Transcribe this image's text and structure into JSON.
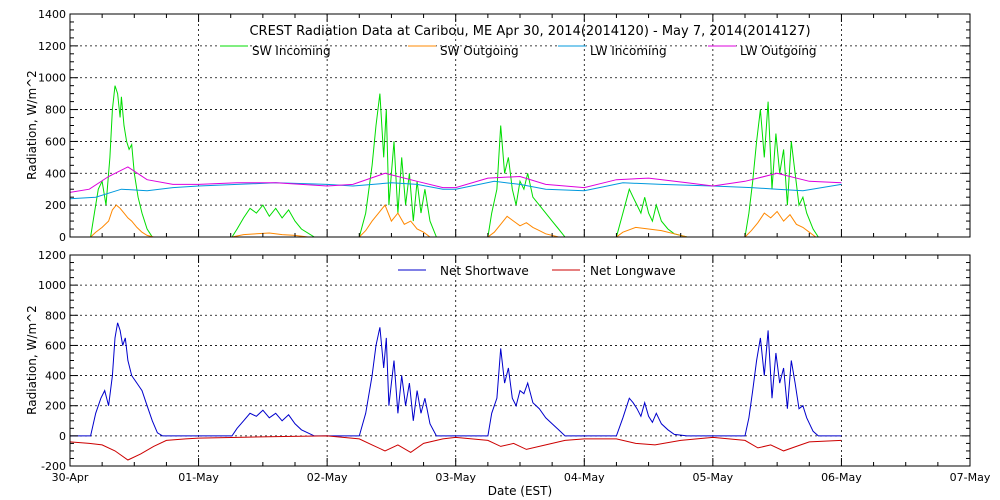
{
  "chart_data": [
    {
      "type": "line",
      "title": "CREST Radiation Data at Caribou, ME   Apr 30, 2014(2014120) - May  7, 2014(2014127)",
      "ylabel": "Radiation, W/m^2",
      "ylim": [
        0,
        1400
      ],
      "yticks": [
        "0",
        "200",
        "400",
        "600",
        "800",
        "1000",
        "1200",
        "1400"
      ],
      "xlim": [
        0,
        7
      ],
      "grid": true,
      "legend_position": "top-center",
      "series": [
        {
          "name": "SW Incoming",
          "color": "#00dd00",
          "x": [
            0.0,
            0.16,
            0.19,
            0.22,
            0.25,
            0.28,
            0.31,
            0.33,
            0.35,
            0.37,
            0.39,
            0.4,
            0.42,
            0.44,
            0.46,
            0.48,
            0.5,
            0.53,
            0.56,
            0.6,
            0.64,
            0.68,
            0.72,
            0.75,
            1.0,
            1.26,
            1.3,
            1.35,
            1.4,
            1.45,
            1.5,
            1.55,
            1.6,
            1.65,
            1.7,
            1.75,
            1.8,
            1.9,
            2.0,
            2.25,
            2.3,
            2.35,
            2.38,
            2.41,
            2.44,
            2.46,
            2.48,
            2.5,
            2.52,
            2.55,
            2.58,
            2.61,
            2.64,
            2.67,
            2.7,
            2.73,
            2.76,
            2.8,
            2.85,
            3.0,
            3.25,
            3.28,
            3.32,
            3.35,
            3.38,
            3.41,
            3.44,
            3.47,
            3.5,
            3.53,
            3.56,
            3.6,
            3.65,
            3.7,
            3.75,
            3.8,
            3.85,
            4.0,
            4.25,
            4.3,
            4.35,
            4.38,
            4.41,
            4.44,
            4.47,
            4.5,
            4.53,
            4.56,
            4.6,
            4.65,
            4.7,
            4.8,
            5.0,
            5.25,
            5.28,
            5.31,
            5.34,
            5.37,
            5.4,
            5.43,
            5.46,
            5.49,
            5.52,
            5.55,
            5.58,
            5.61,
            5.64,
            5.67,
            5.7,
            5.73,
            5.78,
            5.82,
            6.0
          ],
          "values": [
            0,
            0,
            150,
            300,
            350,
            200,
            500,
            800,
            950,
            900,
            750,
            880,
            700,
            600,
            550,
            580,
            400,
            250,
            150,
            50,
            0,
            0,
            0,
            0,
            0,
            0,
            50,
            120,
            180,
            150,
            200,
            130,
            180,
            120,
            170,
            100,
            50,
            0,
            0,
            0,
            150,
            450,
            700,
            900,
            500,
            800,
            200,
            400,
            600,
            150,
            500,
            200,
            400,
            100,
            350,
            150,
            300,
            100,
            0,
            0,
            0,
            150,
            300,
            700,
            400,
            500,
            300,
            200,
            350,
            300,
            400,
            250,
            200,
            150,
            100,
            50,
            0,
            0,
            0,
            150,
            300,
            250,
            200,
            150,
            250,
            150,
            100,
            200,
            100,
            50,
            20,
            0,
            0,
            0,
            150,
            350,
            600,
            800,
            500,
            850,
            300,
            650,
            400,
            550,
            200,
            600,
            400,
            200,
            250,
            150,
            50,
            0,
            0
          ]
        },
        {
          "name": "SW Outgoing",
          "color": "#ff8800",
          "x": [
            0.0,
            0.16,
            0.2,
            0.25,
            0.3,
            0.33,
            0.36,
            0.39,
            0.42,
            0.45,
            0.48,
            0.52,
            0.56,
            0.6,
            0.65,
            0.75,
            1.0,
            1.26,
            1.35,
            1.45,
            1.55,
            1.65,
            1.75,
            1.85,
            2.0,
            2.25,
            2.3,
            2.35,
            2.4,
            2.45,
            2.5,
            2.55,
            2.6,
            2.65,
            2.7,
            2.75,
            2.8,
            3.0,
            3.25,
            3.3,
            3.35,
            3.4,
            3.45,
            3.5,
            3.55,
            3.6,
            3.65,
            3.7,
            3.8,
            4.0,
            4.25,
            4.3,
            4.4,
            4.5,
            4.6,
            4.7,
            4.8,
            5.0,
            5.25,
            5.3,
            5.35,
            5.4,
            5.45,
            5.5,
            5.55,
            5.6,
            5.65,
            5.7,
            5.75,
            5.8,
            6.0
          ],
          "values": [
            0,
            0,
            30,
            60,
            100,
            170,
            200,
            180,
            150,
            120,
            100,
            60,
            30,
            10,
            0,
            0,
            0,
            0,
            15,
            20,
            25,
            15,
            10,
            0,
            0,
            0,
            40,
            100,
            150,
            200,
            100,
            150,
            80,
            100,
            50,
            30,
            0,
            0,
            0,
            30,
            80,
            130,
            100,
            70,
            90,
            60,
            40,
            20,
            0,
            0,
            0,
            30,
            60,
            50,
            40,
            20,
            0,
            0,
            0,
            40,
            90,
            150,
            120,
            160,
            100,
            140,
            80,
            60,
            30,
            0,
            0
          ]
        },
        {
          "name": "LW Incoming",
          "color": "#0099dd",
          "x": [
            0.0,
            0.2,
            0.4,
            0.6,
            0.8,
            1.0,
            1.3,
            1.6,
            2.0,
            2.2,
            2.5,
            2.7,
            2.9,
            3.0,
            3.3,
            3.5,
            3.7,
            4.0,
            4.3,
            4.6,
            5.0,
            5.3,
            5.5,
            5.7,
            6.0
          ],
          "values": [
            240,
            250,
            300,
            290,
            310,
            320,
            330,
            340,
            330,
            320,
            340,
            330,
            300,
            300,
            350,
            330,
            300,
            290,
            340,
            330,
            320,
            310,
            300,
            290,
            330
          ]
        },
        {
          "name": "LW Outgoing",
          "color": "#dd00dd",
          "x": [
            0.0,
            0.15,
            0.3,
            0.45,
            0.6,
            0.8,
            1.0,
            1.3,
            1.6,
            2.0,
            2.2,
            2.45,
            2.7,
            2.9,
            3.0,
            3.25,
            3.5,
            3.7,
            4.0,
            4.25,
            4.5,
            4.8,
            5.0,
            5.25,
            5.5,
            5.75,
            6.0
          ],
          "values": [
            280,
            300,
            380,
            440,
            360,
            330,
            330,
            340,
            340,
            320,
            330,
            400,
            350,
            310,
            310,
            370,
            380,
            330,
            310,
            360,
            370,
            340,
            320,
            350,
            400,
            350,
            340
          ]
        }
      ]
    },
    {
      "type": "line",
      "xlabel": "Date (EST)",
      "ylabel": "Radiation, W/m^2",
      "ylim": [
        -200,
        1200
      ],
      "yticks": [
        "-200",
        "0",
        "200",
        "400",
        "600",
        "800",
        "1000",
        "1200"
      ],
      "xlim": [
        0,
        7
      ],
      "xticks": [
        "30-Apr",
        "01-May",
        "02-May",
        "03-May",
        "04-May",
        "05-May",
        "06-May",
        "07-May"
      ],
      "grid": true,
      "legend_position": "top-center",
      "series": [
        {
          "name": "Net Shortwave",
          "color": "#0000cc",
          "x": [
            0.0,
            0.16,
            0.2,
            0.24,
            0.27,
            0.3,
            0.33,
            0.35,
            0.37,
            0.39,
            0.41,
            0.43,
            0.45,
            0.48,
            0.52,
            0.56,
            0.6,
            0.64,
            0.68,
            0.72,
            0.75,
            1.0,
            1.26,
            1.3,
            1.35,
            1.4,
            1.45,
            1.5,
            1.55,
            1.6,
            1.65,
            1.7,
            1.75,
            1.8,
            1.9,
            2.0,
            2.25,
            2.3,
            2.35,
            2.38,
            2.41,
            2.44,
            2.46,
            2.48,
            2.5,
            2.52,
            2.55,
            2.58,
            2.61,
            2.64,
            2.67,
            2.7,
            2.73,
            2.76,
            2.8,
            2.85,
            3.0,
            3.25,
            3.28,
            3.32,
            3.35,
            3.38,
            3.41,
            3.44,
            3.47,
            3.5,
            3.53,
            3.56,
            3.6,
            3.65,
            3.7,
            3.75,
            3.8,
            3.85,
            4.0,
            4.25,
            4.3,
            4.35,
            4.38,
            4.41,
            4.44,
            4.47,
            4.5,
            4.53,
            4.56,
            4.6,
            4.65,
            4.7,
            4.8,
            5.0,
            5.25,
            5.28,
            5.31,
            5.34,
            5.37,
            5.4,
            5.43,
            5.46,
            5.49,
            5.52,
            5.55,
            5.58,
            5.61,
            5.64,
            5.67,
            5.7,
            5.73,
            5.78,
            5.82,
            6.0
          ],
          "values": [
            0,
            0,
            150,
            250,
            300,
            200,
            400,
            650,
            750,
            700,
            600,
            650,
            500,
            400,
            350,
            300,
            200,
            100,
            20,
            0,
            0,
            0,
            0,
            50,
            100,
            150,
            130,
            170,
            120,
            150,
            100,
            140,
            80,
            40,
            0,
            0,
            0,
            150,
            400,
            600,
            720,
            450,
            650,
            200,
            350,
            500,
            150,
            400,
            200,
            350,
            100,
            300,
            150,
            250,
            80,
            0,
            0,
            0,
            150,
            250,
            580,
            350,
            450,
            250,
            200,
            300,
            280,
            350,
            220,
            180,
            120,
            80,
            40,
            0,
            0,
            0,
            120,
            250,
            220,
            180,
            130,
            220,
            130,
            90,
            150,
            80,
            40,
            10,
            0,
            0,
            0,
            120,
            300,
            500,
            650,
            400,
            700,
            250,
            550,
            350,
            450,
            180,
            500,
            350,
            180,
            200,
            120,
            30,
            0,
            0
          ]
        },
        {
          "name": "Net Longwave",
          "color": "#cc0000",
          "x": [
            0.0,
            0.15,
            0.25,
            0.35,
            0.45,
            0.55,
            0.65,
            0.75,
            0.9,
            1.0,
            1.3,
            1.6,
            2.0,
            2.25,
            2.35,
            2.45,
            2.55,
            2.65,
            2.75,
            2.9,
            3.0,
            3.25,
            3.35,
            3.45,
            3.55,
            3.7,
            3.85,
            4.0,
            4.25,
            4.4,
            4.55,
            4.75,
            5.0,
            5.25,
            5.35,
            5.45,
            5.55,
            5.65,
            5.75,
            6.0
          ],
          "values": [
            -40,
            -50,
            -60,
            -100,
            -160,
            -120,
            -70,
            -30,
            -20,
            -15,
            -10,
            -5,
            0,
            -20,
            -60,
            -100,
            -60,
            -110,
            -50,
            -20,
            -10,
            -30,
            -70,
            -50,
            -90,
            -60,
            -30,
            -20,
            -20,
            -50,
            -60,
            -30,
            -10,
            -30,
            -80,
            -60,
            -100,
            -70,
            -40,
            -30
          ]
        }
      ]
    }
  ],
  "legend": {
    "sw_incoming": "SW Incoming",
    "sw_outgoing": "SW Outgoing",
    "lw_incoming": "LW Incoming",
    "lw_outgoing": "LW Outgoing",
    "net_shortwave": "Net Shortwave",
    "net_longwave": "Net Longwave"
  }
}
